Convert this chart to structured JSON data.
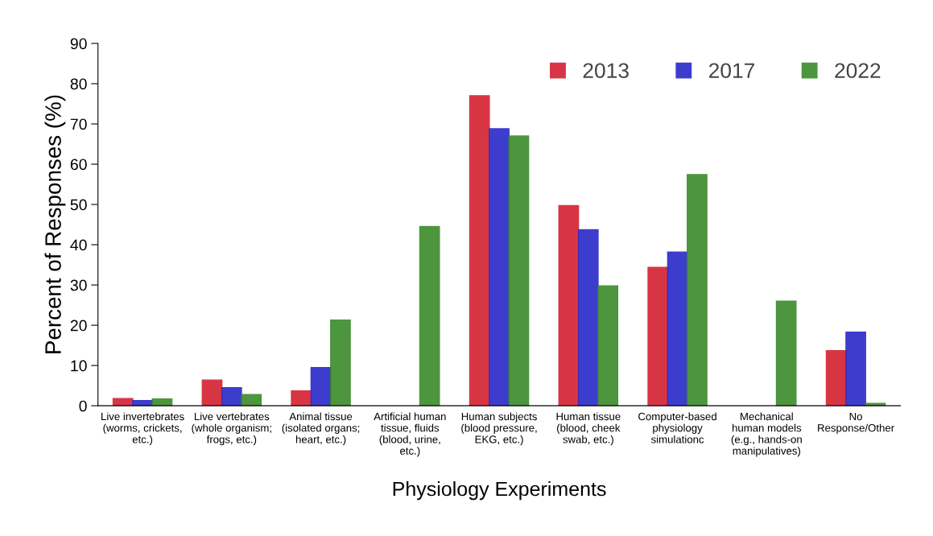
{
  "chart_data": {
    "type": "bar",
    "xlabel": "Physiology Experiments",
    "ylabel": "Percent of Responses (%)",
    "categories": [
      "Live invertebrates\n(worms, crickets,\netc.)",
      "Live vertebrates\n(whole organism;\nfrogs, etc.)",
      "Animal tissue\n(isolated organs;\nheart, etc.)",
      "Artificial human\ntissue, fluids\n(blood, urine,\netc.)",
      "Human subjects\n(blood pressure,\nEKG, etc.)",
      "Human tissue\n(blood, cheek\nswab, etc.)",
      "Computer-based\nphysiology\nsimulationc",
      "Mechanical\nhuman models\n(e.g., hands-on\nmanipulatives)",
      "No\nResponse/Other"
    ],
    "series": [
      {
        "name": "2013",
        "color": "#d42030",
        "values": [
          1.8,
          6.4,
          3.7,
          null,
          77.0,
          49.7,
          34.4,
          null,
          13.7
        ]
      },
      {
        "name": "2017",
        "color": "#2828c8",
        "values": [
          1.3,
          4.5,
          9.5,
          null,
          68.8,
          43.7,
          38.2,
          null,
          18.3
        ]
      },
      {
        "name": "2022",
        "color": "#3a8a2a",
        "values": [
          1.7,
          2.8,
          21.3,
          44.5,
          67.0,
          29.8,
          57.4,
          26.0,
          0.6
        ]
      }
    ],
    "ylim": [
      0,
      90
    ],
    "yticks": [
      0,
      10,
      20,
      30,
      40,
      50,
      60,
      70,
      80,
      90
    ],
    "grid": false,
    "legend": "top right"
  }
}
